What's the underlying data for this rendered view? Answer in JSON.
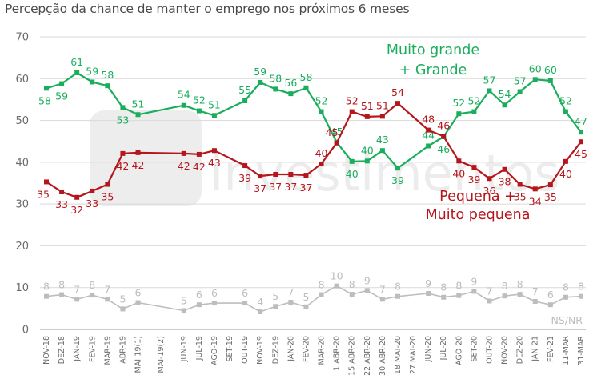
{
  "title": {
    "prefix": "Percepção da chance de ",
    "underlined": "manter",
    "suffix": " o emprego nos próximos 6 meses"
  },
  "watermark": "XP Investimentos",
  "colors": {
    "green": "#1aae5c",
    "red": "#b5161c",
    "gray": "#bdbdbd",
    "grid": "#d9d9d9"
  },
  "chart_data": {
    "type": "line",
    "categories": [
      "NOV-18",
      "DEZ-18",
      "JAN-19",
      "FEV-19",
      "MAR-19",
      "ABR-19",
      "MAI-19(1)",
      "MAI-19(2)",
      "JUN-19",
      "JUL-19",
      "AGO-19",
      "SET-19",
      "OUT-19",
      "NOV-19",
      "DEZ-19",
      "JAN-20",
      "FEV-20",
      "MAR-20",
      "1 ABR-20",
      "15 ABR-20",
      "22 ABR-20",
      "30 ABR-20",
      "18 MAI-20",
      "27 MAI-20",
      "JUN-20",
      "JUL-20",
      "AGO-20",
      "SET-20",
      "OUT-20",
      "NOV-20",
      "DEZ-20",
      "JAN-21",
      "FEV-21",
      "11-MAR",
      "31-MAR"
    ],
    "x_positions": [
      0,
      1,
      2,
      3,
      4,
      5,
      6,
      7.5,
      9,
      10,
      11,
      12,
      13,
      14,
      15,
      16,
      17,
      18,
      19,
      20,
      21,
      22,
      23,
      24,
      25,
      26,
      27,
      28,
      29,
      30,
      31,
      32,
      33,
      34,
      35
    ],
    "ylim": [
      0,
      70
    ],
    "yticks": [
      "0",
      "10",
      "20",
      "30",
      "40",
      "50",
      "60",
      "70"
    ],
    "series": [
      {
        "name": "Muito grande + Grande",
        "label_lines": [
          "Muito grande",
          "+ Grande"
        ],
        "color": "#1aae5c",
        "y": [
          57.7,
          58.8,
          61.4,
          59.2,
          58.3,
          53.1,
          51.4,
          null,
          53.6,
          52.3,
          51.2,
          null,
          54.7,
          59.1,
          57.5,
          56.4,
          57.8,
          52.1,
          44.8,
          40.2,
          40.3,
          42.8,
          38.6,
          null,
          43.9,
          46.1,
          51.6,
          52.1,
          57.1,
          53.7,
          56.9,
          59.8,
          59.5,
          52.1,
          47.2
        ],
        "labels": [
          "58",
          "59",
          "61",
          "59",
          "58",
          "53",
          "51",
          null,
          "54",
          "52",
          "51",
          null,
          "55",
          "59",
          "58",
          "56",
          "58",
          "52",
          "45",
          "40",
          "40",
          "43",
          "39",
          null,
          "44",
          "46",
          "52",
          "52",
          "57",
          "54",
          "57",
          "60",
          "60",
          "52",
          "47"
        ]
      },
      {
        "name": "Pequena + Muito pequena",
        "label_lines": [
          "Pequena +",
          "Muito pequena"
        ],
        "color": "#b5161c",
        "y": [
          35.3,
          32.9,
          31.6,
          33.1,
          34.7,
          42.1,
          42.3,
          null,
          42.1,
          41.9,
          42.8,
          null,
          39.2,
          36.7,
          37.1,
          37.1,
          36.9,
          39.6,
          44.6,
          52.1,
          50.9,
          51.0,
          54.1,
          null,
          47.7,
          46.2,
          40.3,
          38.8,
          36.1,
          38.3,
          34.7,
          33.6,
          34.6,
          40.2,
          44.9
        ],
        "labels": [
          "35",
          "33",
          "32",
          "33",
          "35",
          "42",
          "42",
          null,
          "42",
          "42",
          "43",
          null,
          "39",
          "37",
          "37",
          "37",
          "37",
          "40",
          "45",
          "52",
          "51",
          "51",
          "54",
          null,
          "48",
          "46",
          "40",
          "39",
          "36",
          "38",
          "35",
          "34",
          "35",
          "40",
          "45"
        ]
      },
      {
        "name": "NS/NR",
        "label_lines": [
          "NS/NR"
        ],
        "color": "#bdbdbd",
        "y": [
          7.9,
          8.3,
          7.2,
          8.2,
          7.2,
          4.9,
          6.4,
          null,
          4.5,
          5.9,
          6.3,
          null,
          6.3,
          4.2,
          5.5,
          6.5,
          5.4,
          8.3,
          10.4,
          8.4,
          9.3,
          7.2,
          7.9,
          null,
          8.6,
          7.7,
          8.1,
          9.1,
          6.8,
          8.0,
          8.4,
          6.7,
          5.9,
          7.7,
          7.9
        ],
        "labels": [
          "8",
          "8",
          "7",
          "8",
          "7",
          "5",
          "6",
          null,
          "5",
          "6",
          "6",
          null,
          "6",
          "4",
          "5",
          "7",
          "5",
          "8",
          "10",
          "8",
          "9",
          "7",
          "8",
          null,
          "9",
          "8",
          "8",
          "9",
          "7",
          "8",
          "8",
          "7",
          "6",
          "8",
          "8"
        ]
      }
    ]
  }
}
